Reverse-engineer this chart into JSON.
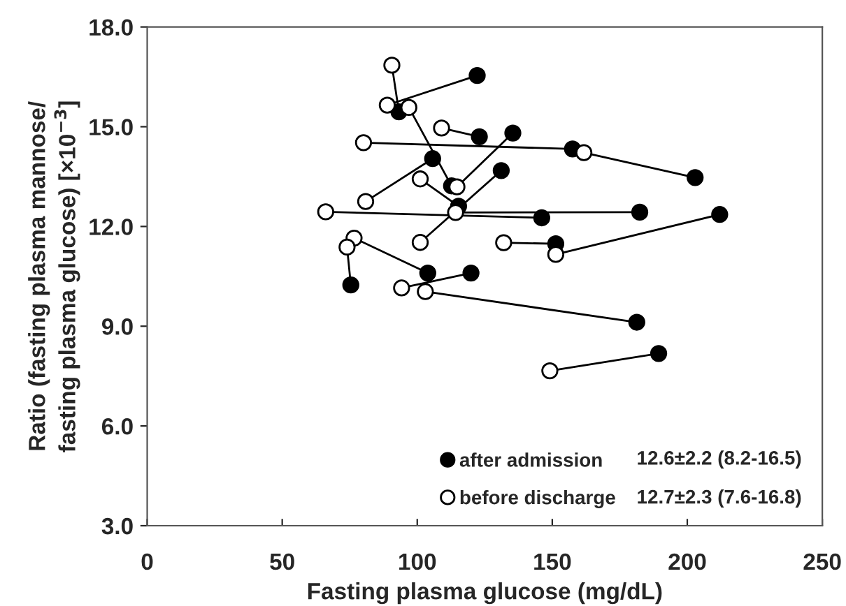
{
  "chart_data": {
    "type": "scatter",
    "xlabel": "Fasting plasma glucose (mg/dL)",
    "ylabel": "Ratio (fasting plasma mannose/\nfasting plasma glucose) [×10$^{−3}$]",
    "xlim": [
      0,
      250
    ],
    "xticks": [
      0,
      50,
      100,
      150,
      200,
      250
    ],
    "ylim": [
      3,
      18
    ],
    "yticks": [
      {
        "value": 3,
        "label": "3.0"
      },
      {
        "value": 6,
        "label": "6.0"
      },
      {
        "value": 9,
        "label": "9.0"
      },
      {
        "value": 12,
        "label": "12.0"
      },
      {
        "value": 15,
        "label": "15.0"
      },
      {
        "value": 18,
        "label": "18.0"
      }
    ],
    "grid": false,
    "legend": "bottom right",
    "series": [
      {
        "type": "line",
        "color": "#000000",
        "marker": "none",
        "x": [
          122.2,
          88.9
        ],
        "values": [
          16.54,
          15.65
        ]
      },
      {
        "type": "line",
        "color": "#000000",
        "marker": "none",
        "x": [
          93.2,
          90.6
        ],
        "values": [
          15.45,
          16.85
        ]
      },
      {
        "type": "line",
        "color": "#000000",
        "marker": "none",
        "x": [
          112.7,
          96.9
        ],
        "values": [
          13.22,
          15.58
        ]
      },
      {
        "type": "line",
        "color": "#000000",
        "marker": "none",
        "x": [
          105.7,
          80.9
        ],
        "values": [
          14.04,
          12.75
        ]
      },
      {
        "type": "line",
        "color": "#000000",
        "marker": "none",
        "x": [
          123.0,
          109.0
        ],
        "values": [
          14.7,
          14.96
        ]
      },
      {
        "type": "line",
        "color": "#000000",
        "marker": "none",
        "x": [
          135.4,
          114.7
        ],
        "values": [
          14.81,
          13.19
        ]
      },
      {
        "type": "line",
        "color": "#000000",
        "marker": "none",
        "x": [
          157.5,
          80.1
        ],
        "values": [
          14.33,
          14.52
        ]
      },
      {
        "type": "line",
        "color": "#000000",
        "marker": "none",
        "x": [
          202.9,
          161.7
        ],
        "values": [
          13.47,
          14.22
        ]
      },
      {
        "type": "line",
        "color": "#000000",
        "marker": "none",
        "x": [
          131.1,
          101.1
        ],
        "values": [
          13.68,
          11.52
        ]
      },
      {
        "type": "line",
        "color": "#000000",
        "marker": "none",
        "x": [
          115.3,
          101.1
        ],
        "values": [
          12.61,
          13.43
        ]
      },
      {
        "type": "line",
        "color": "#000000",
        "marker": "none",
        "x": [
          146.1,
          66.1
        ],
        "values": [
          12.26,
          12.44
        ]
      },
      {
        "type": "line",
        "color": "#000000",
        "marker": "none",
        "x": [
          182.4,
          114.2
        ],
        "values": [
          12.43,
          12.42
        ]
      },
      {
        "type": "line",
        "color": "#000000",
        "marker": "none",
        "x": [
          212.0,
          151.3
        ],
        "values": [
          12.36,
          11.16
        ]
      },
      {
        "type": "line",
        "color": "#000000",
        "marker": "none",
        "x": [
          151.3,
          132.0
        ],
        "values": [
          11.48,
          11.51
        ]
      },
      {
        "type": "line",
        "color": "#000000",
        "marker": "none",
        "x": [
          75.4,
          74.0
        ],
        "values": [
          10.24,
          11.38
        ]
      },
      {
        "type": "line",
        "color": "#000000",
        "marker": "none",
        "x": [
          103.9,
          76.6
        ],
        "values": [
          10.6,
          11.65
        ]
      },
      {
        "type": "line",
        "color": "#000000",
        "marker": "none",
        "x": [
          119.9,
          94.2
        ],
        "values": [
          10.6,
          10.15
        ]
      },
      {
        "type": "line",
        "color": "#000000",
        "marker": "none",
        "x": [
          181.3,
          103.0
        ],
        "values": [
          9.12,
          10.04
        ]
      },
      {
        "type": "line",
        "color": "#000000",
        "marker": "none",
        "x": [
          189.4,
          149.1
        ],
        "values": [
          8.18,
          7.66
        ]
      },
      {
        "name": "after admission",
        "color": "#000000",
        "marker": "circle",
        "x": [
          122.2,
          93.2,
          105.7,
          123.0,
          135.4,
          157.5,
          202.9,
          112.7,
          131.1,
          115.3,
          146.1,
          182.4,
          212.0,
          151.3,
          75.4,
          103.9,
          119.9,
          181.3,
          189.4
        ],
        "values": [
          16.54,
          15.45,
          14.04,
          14.7,
          14.81,
          14.33,
          13.47,
          13.22,
          13.68,
          12.61,
          12.26,
          12.43,
          12.36,
          11.48,
          10.24,
          10.6,
          10.6,
          9.12,
          8.18
        ]
      },
      {
        "name": "before discharge",
        "color": "#ffffff",
        "marker": "circle",
        "x": [
          90.6,
          88.9,
          96.9,
          109.0,
          80.1,
          161.7,
          101.1,
          114.7,
          80.9,
          66.1,
          114.2,
          101.1,
          132.0,
          151.3,
          76.6,
          74.0,
          94.2,
          103.0,
          149.1
        ],
        "values": [
          16.85,
          15.65,
          15.58,
          14.96,
          14.52,
          14.22,
          13.43,
          13.19,
          12.75,
          12.44,
          12.42,
          11.52,
          11.51,
          11.16,
          11.65,
          11.38,
          10.15,
          10.04,
          7.66
        ]
      }
    ],
    "annotations": [
      "12.6±2.2 (8.2-16.5)",
      "12.7±2.3 (7.6-16.8)"
    ]
  }
}
